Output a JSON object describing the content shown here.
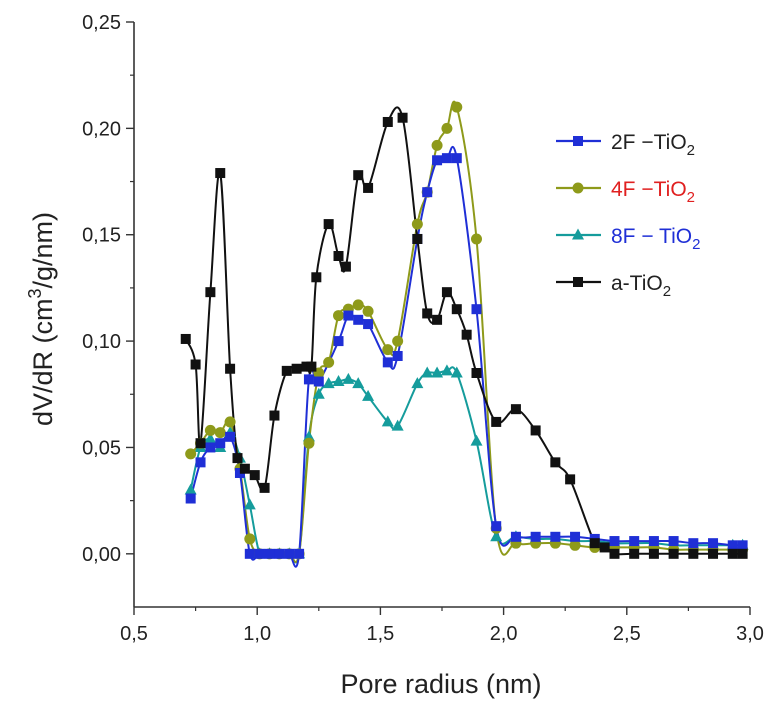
{
  "chart_data": {
    "type": "line",
    "xlabel": "Pore radius (nm)",
    "ylabel": {
      "prefix": "dV/dR  (cm",
      "sup": "3",
      "suffix": "/g/nm)"
    },
    "xlim": [
      0.5,
      3.0
    ],
    "ylim": [
      -0.025,
      0.25
    ],
    "xticks": [
      "0,5",
      "1,0",
      "1,5",
      "2,0",
      "2,5",
      "3,0"
    ],
    "xtick_values": [
      0.5,
      1.0,
      1.5,
      2.0,
      2.5,
      3.0
    ],
    "yticks": [
      "0,00",
      "0,05",
      "0,10",
      "0,15",
      "0,20",
      "0,25"
    ],
    "ytick_values": [
      0.0,
      0.05,
      0.1,
      0.15,
      0.2,
      0.25
    ],
    "grid": false,
    "legend_position": "top-right",
    "series": [
      {
        "name": "2F−TiO2",
        "name_main": "2F −TiO",
        "name_sub": "2",
        "color": "#1f2fd6",
        "label_color": "#222222",
        "marker": "square",
        "x": [
          0.73,
          0.77,
          0.81,
          0.85,
          0.89,
          0.93,
          0.97,
          1.01,
          1.05,
          1.09,
          1.13,
          1.17,
          1.21,
          1.25,
          1.33,
          1.37,
          1.41,
          1.45,
          1.53,
          1.57,
          1.65,
          1.69,
          1.73,
          1.77,
          1.81,
          1.89,
          1.97,
          2.05,
          2.13,
          2.21,
          2.29,
          2.37,
          2.45,
          2.53,
          2.61,
          2.69,
          2.77,
          2.85,
          2.93,
          2.97
        ],
        "y": [
          0.026,
          0.043,
          0.05,
          0.052,
          0.055,
          0.038,
          0.0,
          0.0,
          0.0,
          0.0,
          0.0,
          0.0,
          0.082,
          0.081,
          0.1,
          0.112,
          0.11,
          0.108,
          0.09,
          0.093,
          0.148,
          0.17,
          0.185,
          0.186,
          0.186,
          0.115,
          0.013,
          0.008,
          0.008,
          0.008,
          0.008,
          0.007,
          0.006,
          0.006,
          0.006,
          0.006,
          0.005,
          0.005,
          0.004,
          0.004
        ]
      },
      {
        "name": "4F−TiO2",
        "name_main": "4F −TiO",
        "name_sub": "2",
        "color": "#8e9a1a",
        "label_color": "#e02020",
        "marker": "circle",
        "x": [
          0.73,
          0.77,
          0.81,
          0.85,
          0.89,
          0.93,
          0.97,
          1.01,
          1.05,
          1.09,
          1.13,
          1.17,
          1.21,
          1.25,
          1.29,
          1.33,
          1.37,
          1.41,
          1.45,
          1.53,
          1.57,
          1.65,
          1.69,
          1.73,
          1.77,
          1.81,
          1.89,
          1.97,
          2.05,
          2.13,
          2.21,
          2.29,
          2.37,
          2.45,
          2.53,
          2.61,
          2.69,
          2.77,
          2.85,
          2.93,
          2.97
        ],
        "y": [
          0.047,
          0.052,
          0.058,
          0.057,
          0.062,
          0.04,
          0.007,
          0.0,
          0.0,
          0.0,
          0.0,
          0.0,
          0.052,
          0.085,
          0.09,
          0.112,
          0.115,
          0.117,
          0.114,
          0.096,
          0.1,
          0.155,
          0.17,
          0.192,
          0.2,
          0.21,
          0.148,
          0.012,
          0.005,
          0.005,
          0.005,
          0.004,
          0.003,
          0.003,
          0.003,
          0.003,
          0.002,
          0.002,
          0.002,
          0.002,
          0.002
        ]
      },
      {
        "name": "8F−TiO2",
        "name_main": "8F − TiO",
        "name_sub": "2",
        "color": "#159c9c",
        "label_color": "#1f2fd6",
        "marker": "triangle",
        "x": [
          0.73,
          0.77,
          0.81,
          0.85,
          0.89,
          0.93,
          0.97,
          1.01,
          1.05,
          1.09,
          1.13,
          1.17,
          1.21,
          1.25,
          1.29,
          1.33,
          1.37,
          1.41,
          1.45,
          1.53,
          1.57,
          1.65,
          1.69,
          1.73,
          1.77,
          1.81,
          1.89,
          1.97,
          2.05,
          2.13,
          2.21,
          2.29,
          2.37,
          2.45,
          2.53,
          2.61,
          2.69,
          2.77,
          2.85,
          2.93,
          2.97
        ],
        "y": [
          0.03,
          0.05,
          0.054,
          0.05,
          0.057,
          0.045,
          0.023,
          0.0,
          0.0,
          0.0,
          0.0,
          0.0,
          0.055,
          0.075,
          0.08,
          0.081,
          0.082,
          0.08,
          0.074,
          0.062,
          0.06,
          0.08,
          0.085,
          0.085,
          0.086,
          0.085,
          0.053,
          0.008,
          0.008,
          0.007,
          0.007,
          0.006,
          0.006,
          0.005,
          0.005,
          0.005,
          0.004,
          0.004,
          0.004,
          0.004,
          0.004
        ]
      },
      {
        "name": "a-TiO2",
        "name_main": "a-TiO",
        "name_sub": "2",
        "color": "#111111",
        "label_color": "#222222",
        "marker": "square",
        "x": [
          0.71,
          0.75,
          0.77,
          0.81,
          0.85,
          0.89,
          0.92,
          0.95,
          0.99,
          1.03,
          1.07,
          1.12,
          1.16,
          1.2,
          1.22,
          1.24,
          1.29,
          1.33,
          1.36,
          1.41,
          1.45,
          1.53,
          1.59,
          1.65,
          1.69,
          1.73,
          1.77,
          1.81,
          1.85,
          1.89,
          1.97,
          2.05,
          2.13,
          2.21,
          2.27,
          2.37,
          2.41,
          2.45,
          2.53,
          2.61,
          2.69,
          2.77,
          2.85,
          2.93,
          2.97
        ],
        "y": [
          0.101,
          0.089,
          0.052,
          0.123,
          0.179,
          0.087,
          0.045,
          0.04,
          0.037,
          0.031,
          0.065,
          0.086,
          0.087,
          0.088,
          0.088,
          0.13,
          0.155,
          0.14,
          0.135,
          0.178,
          0.172,
          0.203,
          0.205,
          0.148,
          0.113,
          0.11,
          0.123,
          0.115,
          0.103,
          0.085,
          0.062,
          0.068,
          0.058,
          0.043,
          0.035,
          0.005,
          0.003,
          0.0,
          0.0,
          0.0,
          0.0,
          0.0,
          0.0,
          0.0,
          0.0
        ]
      }
    ]
  }
}
